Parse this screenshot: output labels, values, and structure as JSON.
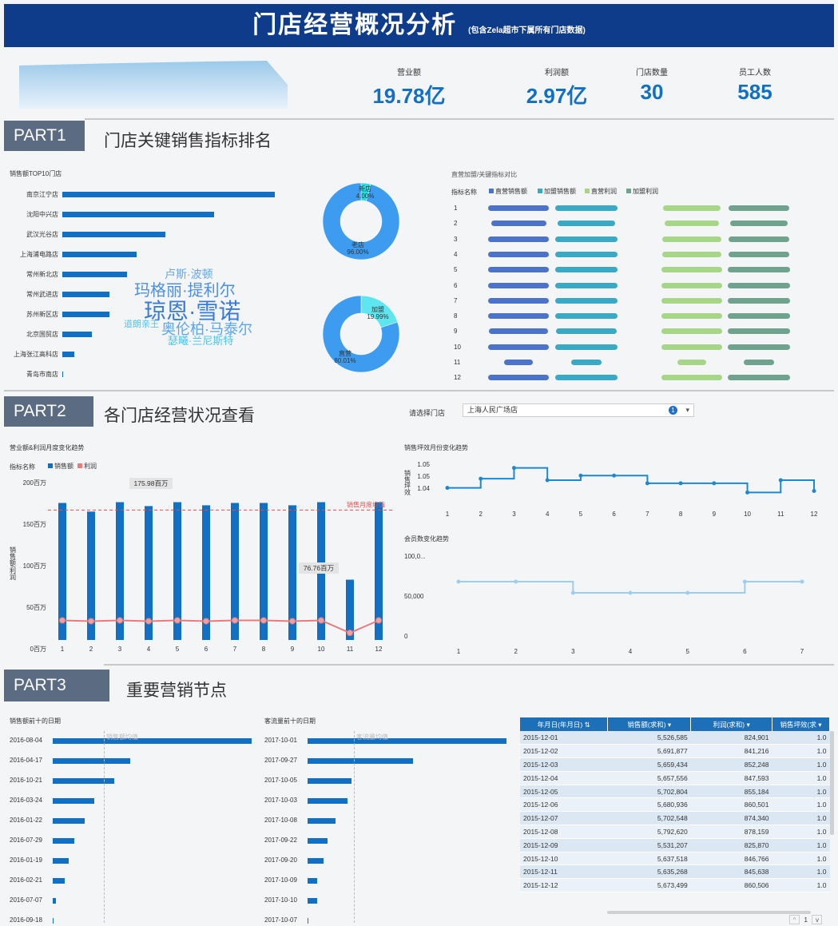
{
  "header": {
    "title": "门店经营概况分析",
    "subtitle": "(包含Zela超市下属所有门店数据)"
  },
  "kpis": [
    {
      "label": "营业额",
      "value": "19.78亿"
    },
    {
      "label": "利润额",
      "value": "2.97亿"
    },
    {
      "label": "门店数量",
      "value": "30"
    },
    {
      "label": "员工人数",
      "value": "585"
    }
  ],
  "part1": {
    "box": "PART1",
    "title": "门店关键销售指标排名",
    "top10_title": "销售额TOP10门店",
    "top10": [
      {
        "name": "南京江宁店",
        "value": 100
      },
      {
        "name": "沈阳中兴店",
        "value": 71.5
      },
      {
        "name": "武汉光谷店",
        "value": 48.5
      },
      {
        "name": "上海浦电路店",
        "value": 35
      },
      {
        "name": "常州新北店",
        "value": 30.5
      },
      {
        "name": "常州武进店",
        "value": 22
      },
      {
        "name": "苏州新区店",
        "value": 22
      },
      {
        "name": "北京国贸店",
        "value": 14
      },
      {
        "name": "上海张江高科店",
        "value": 5.5
      },
      {
        "name": "青岛市南店",
        "value": 0.5
      }
    ],
    "wordcloud": [
      "卢斯·波顿",
      "玛格丽·提利尔",
      "琼恩·雪诺",
      "道朗亲王",
      "奥伦柏·马泰尔",
      "瑟曦·兰尼斯特"
    ],
    "donut1": [
      {
        "label": "新店",
        "pct": "4.00%",
        "value": 4.0
      },
      {
        "label": "老店",
        "pct": "96.00%",
        "value": 96.0
      }
    ],
    "donut2": [
      {
        "label": "加盟",
        "pct": "19.99%",
        "value": 19.99
      },
      {
        "label": "直营",
        "pct": "80.01%",
        "value": 80.01
      }
    ],
    "compare_title": "直营加盟/关键指标对比",
    "legend_head": "指标名称",
    "legend": [
      {
        "name": "直营销售额",
        "color": "#4b73c9"
      },
      {
        "name": "加盟销售额",
        "color": "#3aa9c4"
      },
      {
        "name": "直营利润",
        "color": "#a8d688"
      },
      {
        "name": "加盟利润",
        "color": "#6fa38e"
      }
    ],
    "compare_rows": [
      {
        "m": "1",
        "a": [
          0.74,
          0.82
        ],
        "b": [
          0.74,
          0.82
        ],
        "c": [
          0.68,
          0.78
        ],
        "d": [
          0.7,
          0.8
        ]
      },
      {
        "m": "2",
        "a": [
          0.6,
          0.75
        ],
        "b": [
          0.6,
          0.75
        ],
        "c": [
          0.68,
          0.74
        ],
        "d": [
          0.7,
          0.76
        ]
      },
      {
        "m": "3",
        "a": [
          0.74,
          0.82
        ],
        "b": [
          0.74,
          0.82
        ],
        "c": [
          0.7,
          0.8
        ],
        "d": [
          0.72,
          0.8
        ]
      },
      {
        "m": "4",
        "a": [
          0.72,
          0.82
        ],
        "b": [
          0.72,
          0.82
        ],
        "c": [
          0.7,
          0.8
        ],
        "d": [
          0.72,
          0.8
        ]
      },
      {
        "m": "5",
        "a": [
          0.74,
          0.82
        ],
        "b": [
          0.74,
          0.82
        ],
        "c": [
          0.72,
          0.82
        ],
        "d": [
          0.74,
          0.82
        ]
      },
      {
        "m": "6",
        "a": [
          0.72,
          0.82
        ],
        "b": [
          0.72,
          0.82
        ],
        "c": [
          0.72,
          0.82
        ],
        "d": [
          0.72,
          0.82
        ]
      },
      {
        "m": "7",
        "a": [
          0.74,
          0.82
        ],
        "b": [
          0.74,
          0.82
        ],
        "c": [
          0.74,
          0.82
        ],
        "d": [
          0.74,
          0.82
        ]
      },
      {
        "m": "8",
        "a": [
          0.74,
          0.82
        ],
        "b": [
          0.74,
          0.82
        ],
        "c": [
          0.72,
          0.82
        ],
        "d": [
          0.72,
          0.82
        ]
      },
      {
        "m": "9",
        "a": [
          0.7,
          0.8
        ],
        "b": [
          0.7,
          0.8
        ],
        "c": [
          0.72,
          0.82
        ],
        "d": [
          0.72,
          0.82
        ]
      },
      {
        "m": "10",
        "a": [
          0.74,
          0.82
        ],
        "b": [
          0.74,
          0.82
        ],
        "c": [
          0.72,
          0.82
        ],
        "d": [
          0.72,
          0.82
        ]
      },
      {
        "m": "11",
        "a": [
          0.3,
          0.4
        ],
        "b": [
          0.3,
          0.4
        ],
        "c": [
          0.3,
          0.4
        ],
        "d": [
          0.32,
          0.4
        ]
      },
      {
        "m": "12",
        "a": [
          0.74,
          0.82
        ],
        "b": [
          0.74,
          0.82
        ],
        "c": [
          0.72,
          0.82
        ],
        "d": [
          0.72,
          0.82
        ]
      }
    ]
  },
  "part2": {
    "box": "PART2",
    "title": "各门店经营状况查看",
    "select_label": "请选择门店",
    "select_value": "上海人民广场店",
    "select_badge": "1",
    "trend_title": "营业额&利润月度变化趋势",
    "trend_legend_head": "指标名称",
    "trend_legend": [
      {
        "name": "销售额",
        "color": "#1170c4"
      },
      {
        "name": "利润",
        "color": "#e87b7b"
      }
    ],
    "trend_ylabel": "销售额/利润",
    "trend_yticks": [
      "200百万",
      "150百万",
      "100百万",
      "50百万",
      "0百万"
    ],
    "sales_avg_label": "销售月度均值",
    "callout_max": "175.98百万",
    "callout_min": "76.76百万",
    "efficiency_title": "销售坪效月份变化趋势",
    "efficiency_ylabel": "销售坪效",
    "efficiency_yticks": [
      "1.05",
      "1.05",
      "1.04"
    ],
    "member_title": "会员数变化趋势",
    "member_yticks": [
      "100,0...",
      "50,000",
      "0"
    ]
  },
  "chart_data": [
    {
      "type": "bar",
      "title": "营业额&利润月度变化趋势",
      "categories": [
        "1",
        "2",
        "3",
        "4",
        "5",
        "6",
        "7",
        "8",
        "9",
        "10",
        "11",
        "12"
      ],
      "series": [
        {
          "name": "销售额",
          "values": [
            175,
            164,
            176,
            171,
            176,
            172,
            175,
            175,
            172,
            176,
            77,
            176
          ]
        },
        {
          "name": "利润",
          "values": [
            25,
            24,
            25,
            24,
            25,
            24,
            25,
            25,
            24,
            25,
            9,
            25
          ]
        }
      ],
      "ylim": [
        0,
        200
      ],
      "ylabel": "销售额/利润",
      "reference": 166
    },
    {
      "type": "line",
      "title": "销售坪效月份变化趋势",
      "categories": [
        "1",
        "2",
        "3",
        "4",
        "5",
        "6",
        "7",
        "8",
        "9",
        "10",
        "11",
        "12"
      ],
      "series": [
        {
          "name": "销售坪效",
          "values": [
            1.043,
            1.049,
            1.056,
            1.048,
            1.051,
            1.051,
            1.046,
            1.046,
            1.046,
            1.04,
            1.048,
            1.041
          ]
        }
      ],
      "ylim": [
        1.035,
        1.06
      ],
      "ylabel": "销售坪效"
    },
    {
      "type": "line",
      "title": "会员数变化趋势",
      "categories": [
        "1",
        "2",
        "3",
        "4",
        "5",
        "6",
        "7"
      ],
      "series": [
        {
          "name": "会员数",
          "values": [
            70000,
            70000,
            56000,
            56000,
            56000,
            70000,
            70000
          ]
        }
      ],
      "ylim": [
        0,
        110000
      ]
    },
    {
      "type": "bar",
      "title": "销售额前十的日期",
      "categories": [
        "2016-08-04",
        "2016-04-17",
        "2016-10-21",
        "2016-03-24",
        "2016-01-22",
        "2016-07-29",
        "2016-01-19",
        "2016-02-21",
        "2016-07-07",
        "2016-09-18"
      ],
      "values": [
        100,
        39,
        31,
        21,
        16,
        11,
        8,
        6,
        1.5,
        0.3
      ],
      "reference_label": "销售额均值"
    },
    {
      "type": "bar",
      "title": "客流量前十的日期",
      "categories": [
        "2017-10-01",
        "2017-09-27",
        "2017-10-05",
        "2017-10-03",
        "2017-10-08",
        "2017-09-22",
        "2017-09-20",
        "2017-10-09",
        "2017-10-10",
        "2017-10-07"
      ],
      "values": [
        100,
        53,
        22,
        20,
        14,
        10,
        8,
        5,
        5,
        0.3
      ],
      "reference_label": "客流量均值"
    }
  ],
  "part3": {
    "box": "PART3",
    "title": "重要营销节点",
    "sales_top_title": "销售额前十的日期",
    "traffic_top_title": "客流量前十的日期",
    "sales_avg": "销售额均值",
    "traffic_avg": "客流量均值",
    "table_headers": [
      "年月日(年月日)",
      "销售额(求和)",
      "利润(求和)",
      "销售坪效(求"
    ],
    "table_rows": [
      [
        "2015-12-01",
        "5,526,585",
        "824,901",
        "1.0"
      ],
      [
        "2015-12-02",
        "5,691,877",
        "841,216",
        "1.0"
      ],
      [
        "2015-12-03",
        "5,659,434",
        "852,248",
        "1.0"
      ],
      [
        "2015-12-04",
        "5,657,556",
        "847,593",
        "1.0"
      ],
      [
        "2015-12-05",
        "5,702,804",
        "855,184",
        "1.0"
      ],
      [
        "2015-12-06",
        "5,680,936",
        "860,501",
        "1.0"
      ],
      [
        "2015-12-07",
        "5,702,548",
        "874,340",
        "1.0"
      ],
      [
        "2015-12-08",
        "5,792,620",
        "878,159",
        "1.0"
      ],
      [
        "2015-12-09",
        "5,531,207",
        "825,870",
        "1.0"
      ],
      [
        "2015-12-10",
        "5,637,518",
        "846,766",
        "1.0"
      ],
      [
        "2015-12-11",
        "5,635,268",
        "845,638",
        "1.0"
      ],
      [
        "2015-12-12",
        "5,673,499",
        "860,506",
        "1.0"
      ]
    ],
    "page_num": "1"
  }
}
